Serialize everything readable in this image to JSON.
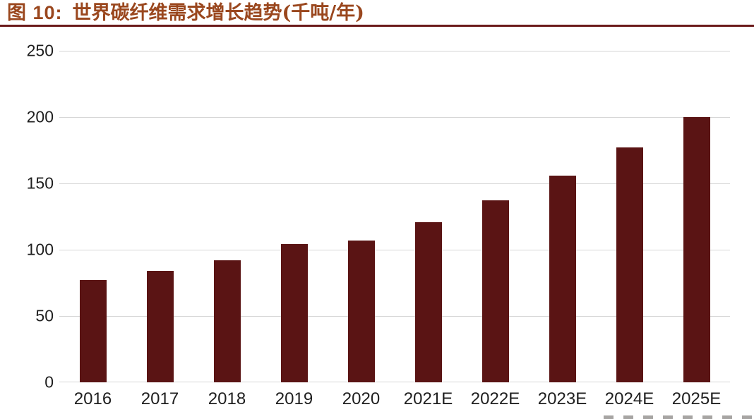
{
  "header": {
    "figure_label": "图 10:",
    "title": "世界碳纤维需求增长趋势(千吨/年)"
  },
  "chart_data": {
    "type": "bar",
    "title": "图 10: 世界碳纤维需求增长趋势(千吨/年)",
    "unit_label": "千吨/年",
    "categories": [
      "2016",
      "2017",
      "2018",
      "2019",
      "2020",
      "2021E",
      "2022E",
      "2023E",
      "2024E",
      "2025E"
    ],
    "values": [
      77,
      84,
      92,
      104,
      107,
      121,
      137,
      156,
      177,
      200
    ],
    "xlabel": "",
    "ylabel": "",
    "ylim": [
      0,
      250
    ],
    "yticks": [
      0,
      50,
      100,
      150,
      200,
      250
    ],
    "grid": true,
    "legend": "none"
  },
  "colors": {
    "bar": "#5A1414",
    "title-text": "#9A471E",
    "rule": "#6B1A1A",
    "gridline": "#D6D6D6",
    "axis-text": "#1F1F1F",
    "background": "#FFFFFF"
  }
}
